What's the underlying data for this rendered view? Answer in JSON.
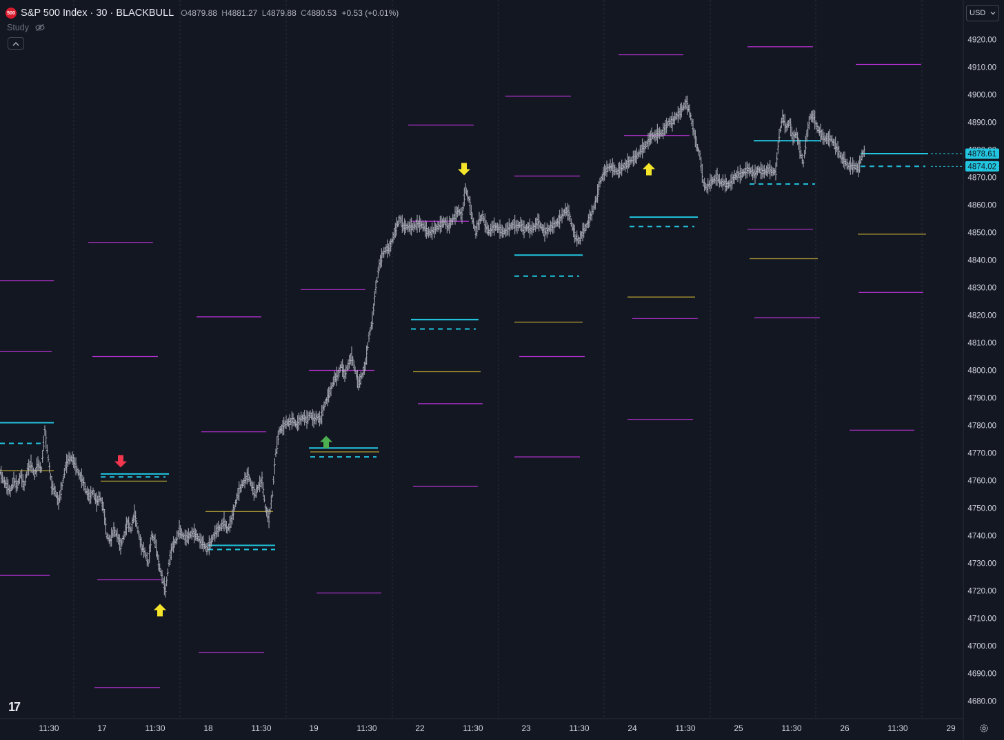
{
  "header": {
    "badge": "500",
    "title": "S&P 500 Index · 30 · BLACKBULL",
    "ohlc": {
      "o_label": "O",
      "o": "4879.88",
      "h_label": "H",
      "h": "4881.27",
      "l_label": "L",
      "l": "4879.88",
      "c_label": "C",
      "c": "4880.53",
      "change": "+0.53 (+0.01%)"
    }
  },
  "study_label": "Study",
  "currency": "USD",
  "logo": "17",
  "colors": {
    "background": "#131722",
    "price": "#b2b5be",
    "magenta": "#b832d6",
    "cyan": "#22c6e0",
    "olive": "#b7a233",
    "yellow": "#f5e52a",
    "red": "#f2364e",
    "green": "#4caf50",
    "grid": "#2a2e39",
    "axis_text": "#d1d4dc"
  },
  "chart_data": {
    "type": "bar",
    "symbol": "S&P 500 Index",
    "interval": "30",
    "ylim": [
      4675,
      4930
    ],
    "y_ticks": [
      "4920.00",
      "4910.00",
      "4900.00",
      "4890.00",
      "4880.00",
      "4870.00",
      "4860.00",
      "4850.00",
      "4840.00",
      "4830.00",
      "4820.00",
      "4810.00",
      "4800.00",
      "4790.00",
      "4780.00",
      "4770.00",
      "4760.00",
      "4750.00",
      "4740.00",
      "4730.00",
      "4720.00",
      "4710.00",
      "4700.00",
      "4690.00",
      "4680.00"
    ],
    "x_ticks": [
      "11:30",
      "17",
      "11:30",
      "18",
      "11:30",
      "19",
      "11:30",
      "22",
      "11:30",
      "23",
      "11:30",
      "24",
      "11:30",
      "25",
      "11:30",
      "26",
      "11:30",
      "29"
    ],
    "price_labels": [
      "4878.61",
      "4874.02"
    ],
    "price_path": [
      [
        0,
        4763
      ],
      [
        5,
        4760
      ],
      [
        10,
        4758
      ],
      [
        15,
        4756
      ],
      [
        20,
        4760
      ],
      [
        25,
        4758
      ],
      [
        30,
        4762
      ],
      [
        35,
        4758
      ],
      [
        40,
        4764
      ],
      [
        45,
        4766
      ],
      [
        50,
        4762
      ],
      [
        55,
        4766
      ],
      [
        60,
        4764
      ],
      [
        65,
        4778
      ],
      [
        70,
        4768
      ],
      [
        75,
        4758
      ],
      [
        80,
        4756
      ],
      [
        85,
        4752
      ],
      [
        90,
        4758
      ],
      [
        95,
        4765
      ],
      [
        100,
        4768
      ],
      [
        105,
        4768
      ],
      [
        110,
        4765
      ],
      [
        115,
        4762
      ],
      [
        120,
        4760
      ],
      [
        125,
        4756
      ],
      [
        130,
        4754
      ],
      [
        135,
        4756
      ],
      [
        140,
        4752
      ],
      [
        145,
        4754
      ],
      [
        150,
        4750
      ],
      [
        155,
        4740
      ],
      [
        160,
        4738
      ],
      [
        165,
        4742
      ],
      [
        170,
        4740
      ],
      [
        175,
        4736
      ],
      [
        180,
        4740
      ],
      [
        185,
        4745
      ],
      [
        190,
        4742
      ],
      [
        195,
        4748
      ],
      [
        200,
        4742
      ],
      [
        205,
        4736
      ],
      [
        210,
        4734
      ],
      [
        215,
        4730
      ],
      [
        220,
        4740
      ],
      [
        225,
        4738
      ],
      [
        230,
        4730
      ],
      [
        235,
        4725
      ],
      [
        240,
        4720
      ],
      [
        245,
        4730
      ],
      [
        250,
        4736
      ],
      [
        255,
        4738
      ],
      [
        260,
        4742
      ],
      [
        265,
        4740
      ],
      [
        270,
        4739
      ],
      [
        275,
        4740
      ],
      [
        280,
        4741
      ],
      [
        285,
        4740
      ],
      [
        290,
        4738
      ],
      [
        295,
        4737
      ],
      [
        300,
        4735
      ],
      [
        305,
        4737
      ],
      [
        310,
        4740
      ],
      [
        315,
        4742
      ],
      [
        320,
        4743
      ],
      [
        325,
        4745
      ],
      [
        330,
        4742
      ],
      [
        335,
        4745
      ],
      [
        340,
        4750
      ],
      [
        345,
        4755
      ],
      [
        350,
        4758
      ],
      [
        355,
        4760
      ],
      [
        360,
        4762
      ],
      [
        365,
        4758
      ],
      [
        370,
        4755
      ],
      [
        375,
        4758
      ],
      [
        380,
        4760
      ],
      [
        385,
        4750
      ],
      [
        390,
        4746
      ],
      [
        395,
        4755
      ],
      [
        400,
        4770
      ],
      [
        405,
        4778
      ],
      [
        410,
        4779
      ],
      [
        415,
        4781
      ],
      [
        420,
        4781
      ],
      [
        425,
        4782
      ],
      [
        430,
        4780
      ],
      [
        435,
        4782
      ],
      [
        440,
        4783
      ],
      [
        445,
        4782
      ],
      [
        450,
        4784
      ],
      [
        455,
        4782
      ],
      [
        460,
        4783
      ],
      [
        465,
        4782
      ],
      [
        470,
        4787
      ],
      [
        475,
        4790
      ],
      [
        480,
        4793
      ],
      [
        485,
        4797
      ],
      [
        490,
        4798
      ],
      [
        495,
        4802
      ],
      [
        500,
        4798
      ],
      [
        505,
        4802
      ],
      [
        510,
        4805
      ],
      [
        515,
        4800
      ],
      [
        520,
        4795
      ],
      [
        525,
        4798
      ],
      [
        530,
        4802
      ],
      [
        535,
        4812
      ],
      [
        540,
        4818
      ],
      [
        545,
        4830
      ],
      [
        550,
        4838
      ],
      [
        555,
        4842
      ],
      [
        560,
        4844
      ],
      [
        565,
        4844
      ],
      [
        570,
        4848
      ],
      [
        575,
        4852
      ],
      [
        580,
        4855
      ],
      [
        585,
        4852
      ],
      [
        590,
        4852
      ],
      [
        595,
        4852
      ],
      [
        600,
        4852
      ],
      [
        605,
        4853
      ],
      [
        610,
        4853
      ],
      [
        615,
        4852
      ],
      [
        620,
        4850
      ],
      [
        625,
        4850
      ],
      [
        630,
        4851
      ],
      [
        635,
        4852
      ],
      [
        640,
        4853
      ],
      [
        645,
        4854
      ],
      [
        650,
        4852
      ],
      [
        655,
        4854
      ],
      [
        660,
        4856
      ],
      [
        665,
        4858
      ],
      [
        670,
        4856
      ],
      [
        675,
        4866
      ],
      [
        680,
        4862
      ],
      [
        685,
        4855
      ],
      [
        690,
        4850
      ],
      [
        695,
        4854
      ],
      [
        700,
        4856
      ],
      [
        705,
        4852
      ],
      [
        710,
        4850
      ],
      [
        715,
        4852
      ],
      [
        720,
        4852
      ],
      [
        725,
        4851
      ],
      [
        730,
        4850
      ],
      [
        735,
        4851
      ],
      [
        740,
        4852
      ],
      [
        745,
        4853
      ],
      [
        750,
        4852
      ],
      [
        755,
        4853
      ],
      [
        760,
        4851
      ],
      [
        765,
        4852
      ],
      [
        770,
        4851
      ],
      [
        775,
        4852
      ],
      [
        780,
        4854
      ],
      [
        785,
        4852
      ],
      [
        790,
        4850
      ],
      [
        795,
        4851
      ],
      [
        800,
        4852
      ],
      [
        805,
        4853
      ],
      [
        810,
        4854
      ],
      [
        815,
        4856
      ],
      [
        820,
        4858
      ],
      [
        825,
        4857
      ],
      [
        830,
        4852
      ],
      [
        835,
        4848
      ],
      [
        840,
        4847
      ],
      [
        845,
        4850
      ],
      [
        850,
        4852
      ],
      [
        855,
        4855
      ],
      [
        860,
        4858
      ],
      [
        865,
        4862
      ],
      [
        870,
        4868
      ],
      [
        875,
        4871
      ],
      [
        880,
        4873
      ],
      [
        885,
        4874
      ],
      [
        890,
        4873
      ],
      [
        895,
        4872
      ],
      [
        900,
        4873
      ],
      [
        905,
        4874
      ],
      [
        910,
        4875
      ],
      [
        915,
        4876
      ],
      [
        920,
        4877
      ],
      [
        925,
        4878
      ],
      [
        930,
        4880
      ],
      [
        935,
        4881
      ],
      [
        940,
        4883
      ],
      [
        945,
        4885
      ],
      [
        950,
        4885
      ],
      [
        955,
        4886
      ],
      [
        960,
        4886
      ],
      [
        965,
        4888
      ],
      [
        970,
        4890
      ],
      [
        975,
        4890
      ],
      [
        980,
        4892
      ],
      [
        985,
        4893
      ],
      [
        990,
        4895
      ],
      [
        995,
        4897
      ],
      [
        1000,
        4894
      ],
      [
        1005,
        4888
      ],
      [
        1010,
        4882
      ],
      [
        1015,
        4878
      ],
      [
        1020,
        4868
      ],
      [
        1025,
        4866
      ],
      [
        1030,
        4868
      ],
      [
        1035,
        4869
      ],
      [
        1040,
        4870
      ],
      [
        1045,
        4868
      ],
      [
        1050,
        4868
      ],
      [
        1055,
        4867
      ],
      [
        1060,
        4868
      ],
      [
        1065,
        4870
      ],
      [
        1070,
        4871
      ],
      [
        1075,
        4871
      ],
      [
        1080,
        4872
      ],
      [
        1085,
        4873
      ],
      [
        1090,
        4872
      ],
      [
        1095,
        4871
      ],
      [
        1100,
        4873
      ],
      [
        1105,
        4872
      ],
      [
        1110,
        4872
      ],
      [
        1115,
        4873
      ],
      [
        1120,
        4872
      ],
      [
        1125,
        4872
      ],
      [
        1130,
        4885
      ],
      [
        1135,
        4892
      ],
      [
        1140,
        4888
      ],
      [
        1145,
        4890
      ],
      [
        1150,
        4884
      ],
      [
        1155,
        4886
      ],
      [
        1160,
        4880
      ],
      [
        1165,
        4875
      ],
      [
        1170,
        4885
      ],
      [
        1175,
        4892
      ],
      [
        1180,
        4892
      ],
      [
        1185,
        4888
      ],
      [
        1190,
        4886
      ],
      [
        1195,
        4884
      ],
      [
        1200,
        4884
      ],
      [
        1205,
        4884
      ],
      [
        1210,
        4882
      ],
      [
        1215,
        4880
      ],
      [
        1220,
        4877
      ],
      [
        1225,
        4876
      ],
      [
        1230,
        4874
      ],
      [
        1235,
        4874
      ],
      [
        1240,
        4874
      ],
      [
        1245,
        4873
      ],
      [
        1250,
        4878
      ],
      [
        1255,
        4880
      ]
    ],
    "levels": [
      {
        "color": "magenta",
        "x1": 0,
        "x2": 78,
        "price": 4832.5
      },
      {
        "color": "magenta",
        "x1": 0,
        "x2": 75,
        "price": 4806.8
      },
      {
        "color": "cyan",
        "x1": 0,
        "x2": 78,
        "price": 4781
      },
      {
        "color": "cyan-dash",
        "x1": 0,
        "x2": 60,
        "price": 4773.5
      },
      {
        "color": "olive",
        "x1": 0,
        "x2": 78,
        "price": 4763.6
      },
      {
        "color": "magenta",
        "x1": 0,
        "x2": 72,
        "price": 4725.6
      },
      {
        "color": "magenta",
        "x1": 128,
        "x2": 222,
        "price": 4846.4
      },
      {
        "color": "magenta",
        "x1": 134,
        "x2": 229,
        "price": 4805
      },
      {
        "color": "cyan",
        "x1": 146,
        "x2": 245,
        "price": 4762.4
      },
      {
        "color": "cyan-dash",
        "x1": 146,
        "x2": 240,
        "price": 4761.3
      },
      {
        "color": "olive",
        "x1": 146,
        "x2": 242,
        "price": 4759.8
      },
      {
        "color": "magenta",
        "x1": 141,
        "x2": 234,
        "price": 4724
      },
      {
        "color": "magenta",
        "x1": 137,
        "x2": 232,
        "price": 4684.9
      },
      {
        "color": "magenta",
        "x1": 285,
        "x2": 379,
        "price": 4819.4
      },
      {
        "color": "magenta",
        "x1": 292,
        "x2": 386,
        "price": 4777.7
      },
      {
        "color": "olive",
        "x1": 298,
        "x2": 396,
        "price": 4748.8
      },
      {
        "color": "cyan",
        "x1": 302,
        "x2": 399,
        "price": 4736.5
      },
      {
        "color": "cyan-dash",
        "x1": 302,
        "x2": 399,
        "price": 4735
      },
      {
        "color": "magenta",
        "x1": 288,
        "x2": 383,
        "price": 4697.6
      },
      {
        "color": "magenta",
        "x1": 436,
        "x2": 530,
        "price": 4829.3
      },
      {
        "color": "magenta",
        "x1": 448,
        "x2": 543,
        "price": 4800
      },
      {
        "color": "cyan",
        "x1": 448,
        "x2": 548,
        "price": 4771.8
      },
      {
        "color": "olive",
        "x1": 450,
        "x2": 550,
        "price": 4770.4
      },
      {
        "color": "cyan-dash",
        "x1": 450,
        "x2": 546,
        "price": 4768.6
      },
      {
        "color": "magenta",
        "x1": 459,
        "x2": 553,
        "price": 4719.2
      },
      {
        "color": "magenta",
        "x1": 592,
        "x2": 687,
        "price": 4889
      },
      {
        "color": "magenta",
        "x1": 596,
        "x2": 680,
        "price": 4854.1
      },
      {
        "color": "cyan",
        "x1": 596,
        "x2": 694,
        "price": 4818.4
      },
      {
        "color": "cyan-dash",
        "x1": 596,
        "x2": 690,
        "price": 4815
      },
      {
        "color": "olive",
        "x1": 599,
        "x2": 697,
        "price": 4799.5
      },
      {
        "color": "magenta",
        "x1": 606,
        "x2": 700,
        "price": 4787.9
      },
      {
        "color": "magenta",
        "x1": 599,
        "x2": 693,
        "price": 4757.9
      },
      {
        "color": "magenta",
        "x1": 733,
        "x2": 828,
        "price": 4899.5
      },
      {
        "color": "magenta",
        "x1": 746,
        "x2": 841,
        "price": 4870.5
      },
      {
        "color": "cyan",
        "x1": 746,
        "x2": 845,
        "price": 4841.8
      },
      {
        "color": "cyan-dash",
        "x1": 746,
        "x2": 840,
        "price": 4834.2
      },
      {
        "color": "olive",
        "x1": 746,
        "x2": 845,
        "price": 4817.5
      },
      {
        "color": "magenta",
        "x1": 753,
        "x2": 848,
        "price": 4805
      },
      {
        "color": "magenta",
        "x1": 746,
        "x2": 841,
        "price": 4768.6
      },
      {
        "color": "magenta",
        "x1": 897,
        "x2": 991,
        "price": 4914.5
      },
      {
        "color": "magenta",
        "x1": 905,
        "x2": 1000,
        "price": 4885.2
      },
      {
        "color": "cyan",
        "x1": 913,
        "x2": 1012,
        "price": 4855.6
      },
      {
        "color": "cyan-dash",
        "x1": 913,
        "x2": 1007,
        "price": 4852.2
      },
      {
        "color": "olive",
        "x1": 910,
        "x2": 1008,
        "price": 4826.6
      },
      {
        "color": "magenta",
        "x1": 917,
        "x2": 1012,
        "price": 4818.8
      },
      {
        "color": "magenta",
        "x1": 910,
        "x2": 1005,
        "price": 4782.2
      },
      {
        "color": "magenta",
        "x1": 1084,
        "x2": 1179,
        "price": 4917.4
      },
      {
        "color": "cyan",
        "x1": 1093,
        "x2": 1190,
        "price": 4883.3
      },
      {
        "color": "cyan-dash",
        "x1": 1087,
        "x2": 1182,
        "price": 4867.6
      },
      {
        "color": "magenta",
        "x1": 1084,
        "x2": 1179,
        "price": 4851.2
      },
      {
        "color": "olive",
        "x1": 1087,
        "x2": 1186,
        "price": 4840.5
      },
      {
        "color": "magenta",
        "x1": 1094,
        "x2": 1189,
        "price": 4819.1
      },
      {
        "color": "magenta",
        "x1": 1241,
        "x2": 1336,
        "price": 4911
      },
      {
        "color": "cyan",
        "x1": 1248,
        "x2": 1346,
        "price": 4878.61
      },
      {
        "color": "cyan-dash",
        "x1": 1248,
        "x2": 1342,
        "price": 4874.02
      },
      {
        "color": "olive",
        "x1": 1244,
        "x2": 1343,
        "price": 4849.4
      },
      {
        "color": "magenta",
        "x1": 1245,
        "x2": 1339,
        "price": 4828.3
      },
      {
        "color": "magenta",
        "x1": 1232,
        "x2": 1326,
        "price": 4778.3
      }
    ],
    "markers": [
      {
        "type": "down",
        "color": "red",
        "x": 175,
        "price": 4767
      },
      {
        "type": "up",
        "color": "yellow",
        "x": 232,
        "price": 4713
      },
      {
        "type": "up",
        "color": "green",
        "x": 473,
        "price": 4774
      },
      {
        "type": "down",
        "color": "yellow",
        "x": 673,
        "price": 4873
      },
      {
        "type": "up",
        "color": "yellow",
        "x": 941,
        "price": 4873
      }
    ]
  }
}
